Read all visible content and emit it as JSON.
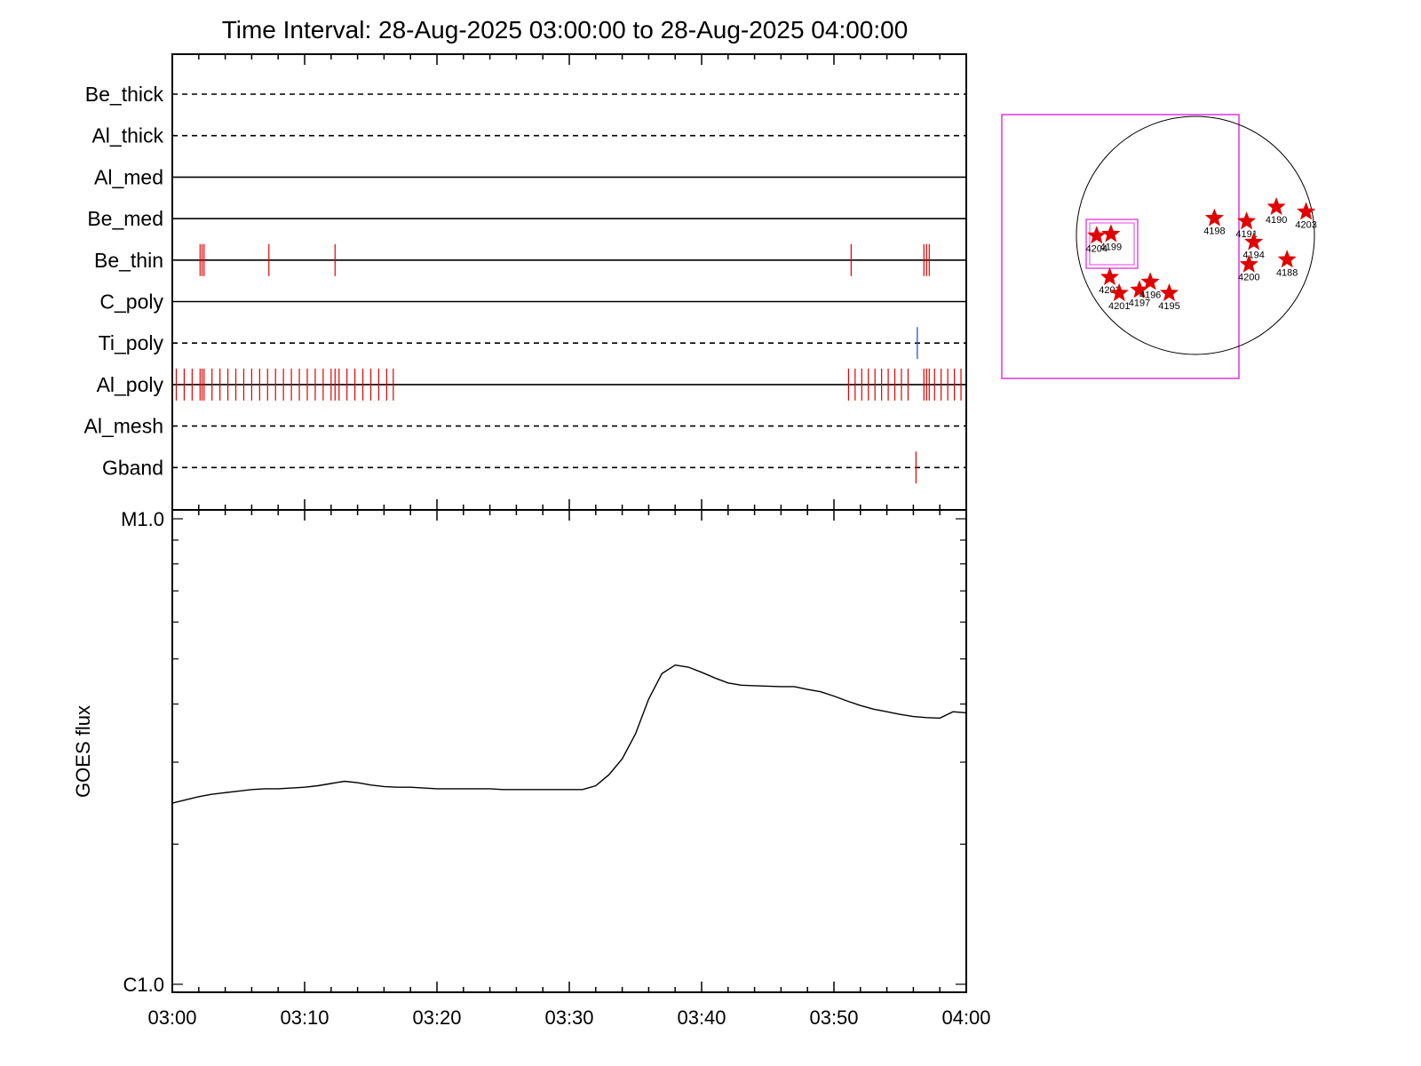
{
  "chart_data": [
    {
      "type": "line",
      "title": "Time Interval: 28-Aug-2025 03:00:00 to 28-Aug-2025 04:00:00",
      "description_note": "",
      "x_range": [
        "03:00",
        "04:00"
      ],
      "filters": [
        {
          "name": "Be_thick",
          "style": "dashed",
          "obs": []
        },
        {
          "name": "Al_thick",
          "style": "dashed",
          "obs": []
        },
        {
          "name": "Al_med",
          "style": "solid",
          "obs": []
        },
        {
          "name": "Be_med",
          "style": "solid",
          "obs": []
        },
        {
          "name": "Be_thin",
          "style": "solid",
          "obs": [
            {
              "t": 2.1,
              "c": "#e00000"
            },
            {
              "t": 2.25,
              "c": "#e00000"
            },
            {
              "t": 2.4,
              "c": "#e00000"
            },
            {
              "t": 7.3,
              "c": "#e00000"
            },
            {
              "t": 12.3,
              "c": "#e00000"
            },
            {
              "t": 51.3,
              "c": "#e00000"
            },
            {
              "t": 56.8,
              "c": "#e00000"
            },
            {
              "t": 57.0,
              "c": "#e00000"
            },
            {
              "t": 57.2,
              "c": "#e00000"
            }
          ]
        },
        {
          "name": "C_poly",
          "style": "solid",
          "obs": []
        },
        {
          "name": "Ti_poly",
          "style": "dashed",
          "obs": [
            {
              "t": 56.3,
              "c": "#2040c0"
            }
          ]
        },
        {
          "name": "Al_poly",
          "style": "solid",
          "obs": [
            {
              "t": 0.3,
              "c": "#e00000"
            },
            {
              "t": 0.9,
              "c": "#e00000"
            },
            {
              "t": 1.5,
              "c": "#e00000"
            },
            {
              "t": 2.1,
              "c": "#e00000"
            },
            {
              "t": 2.25,
              "c": "#e00000"
            },
            {
              "t": 2.4,
              "c": "#e00000"
            },
            {
              "t": 3.0,
              "c": "#e00000"
            },
            {
              "t": 3.6,
              "c": "#e00000"
            },
            {
              "t": 4.2,
              "c": "#e00000"
            },
            {
              "t": 4.8,
              "c": "#e00000"
            },
            {
              "t": 5.4,
              "c": "#e00000"
            },
            {
              "t": 6.0,
              "c": "#e00000"
            },
            {
              "t": 6.6,
              "c": "#e00000"
            },
            {
              "t": 7.2,
              "c": "#e00000"
            },
            {
              "t": 7.8,
              "c": "#e00000"
            },
            {
              "t": 8.4,
              "c": "#e00000"
            },
            {
              "t": 9.0,
              "c": "#e00000"
            },
            {
              "t": 9.6,
              "c": "#e00000"
            },
            {
              "t": 10.2,
              "c": "#e00000"
            },
            {
              "t": 10.8,
              "c": "#e00000"
            },
            {
              "t": 11.4,
              "c": "#e00000"
            },
            {
              "t": 12.0,
              "c": "#e00000"
            },
            {
              "t": 12.3,
              "c": "#e00000"
            },
            {
              "t": 12.6,
              "c": "#e00000"
            },
            {
              "t": 13.2,
              "c": "#e00000"
            },
            {
              "t": 13.8,
              "c": "#e00000"
            },
            {
              "t": 14.4,
              "c": "#e00000"
            },
            {
              "t": 15.0,
              "c": "#e00000"
            },
            {
              "t": 15.6,
              "c": "#e00000"
            },
            {
              "t": 16.2,
              "c": "#e00000"
            },
            {
              "t": 16.7,
              "c": "#e00000"
            },
            {
              "t": 51.1,
              "c": "#e00000"
            },
            {
              "t": 51.6,
              "c": "#e00000"
            },
            {
              "t": 52.1,
              "c": "#e00000"
            },
            {
              "t": 52.6,
              "c": "#e00000"
            },
            {
              "t": 53.1,
              "c": "#e00000"
            },
            {
              "t": 53.6,
              "c": "#e00000"
            },
            {
              "t": 54.1,
              "c": "#e00000"
            },
            {
              "t": 54.6,
              "c": "#e00000"
            },
            {
              "t": 55.1,
              "c": "#e00000"
            },
            {
              "t": 55.6,
              "c": "#e00000"
            },
            {
              "t": 56.8,
              "c": "#e00000"
            },
            {
              "t": 57.0,
              "c": "#e00000"
            },
            {
              "t": 57.2,
              "c": "#e00000"
            },
            {
              "t": 57.6,
              "c": "#e00000"
            },
            {
              "t": 58.1,
              "c": "#e00000"
            },
            {
              "t": 58.6,
              "c": "#e00000"
            },
            {
              "t": 59.1,
              "c": "#e00000"
            },
            {
              "t": 59.6,
              "c": "#e00000"
            }
          ]
        },
        {
          "name": "Al_mesh",
          "style": "dashed",
          "obs": []
        },
        {
          "name": "Gband",
          "style": "dashed",
          "obs": [
            {
              "t": 56.2,
              "c": "#e00000"
            }
          ]
        }
      ]
    },
    {
      "type": "line",
      "ylabel": "GOES flux",
      "xlabel": "",
      "y_scale": "log",
      "ylim": [
        1e-06,
        1e-05
      ],
      "yticks": [
        {
          "label": "M1.0",
          "value": 1e-05
        },
        {
          "label": "C1.0",
          "value": 1e-06
        }
      ],
      "x_range_minutes": [
        0,
        60
      ],
      "xtick_labels": [
        "03:00",
        "03:10",
        "03:20",
        "03:30",
        "03:40",
        "03:50",
        "04:00"
      ],
      "series": [
        {
          "color": "#000000",
          "x": [
            0,
            1,
            2,
            3,
            4,
            5,
            6,
            7,
            8,
            9,
            10,
            11,
            12,
            13,
            14,
            15,
            16,
            17,
            18,
            19,
            20,
            21,
            22,
            23,
            24,
            25,
            26,
            27,
            28,
            29,
            30,
            31,
            32,
            33,
            34,
            35,
            36,
            37,
            38,
            39,
            40,
            41,
            42,
            43,
            44,
            45,
            46,
            47,
            48,
            49,
            50,
            51,
            52,
            53,
            54,
            55,
            56,
            57,
            58,
            59,
            60
          ],
          "y": [
            2.45e-06,
            2.49e-06,
            2.53e-06,
            2.56e-06,
            2.58e-06,
            2.6e-06,
            2.62e-06,
            2.63e-06,
            2.63e-06,
            2.64e-06,
            2.65e-06,
            2.67e-06,
            2.7e-06,
            2.73e-06,
            2.71e-06,
            2.68e-06,
            2.66e-06,
            2.65e-06,
            2.65e-06,
            2.64e-06,
            2.63e-06,
            2.63e-06,
            2.63e-06,
            2.63e-06,
            2.63e-06,
            2.62e-06,
            2.62e-06,
            2.62e-06,
            2.62e-06,
            2.62e-06,
            2.62e-06,
            2.62e-06,
            2.67e-06,
            2.82e-06,
            3.05e-06,
            3.45e-06,
            4.1e-06,
            4.65e-06,
            4.85e-06,
            4.8e-06,
            4.68e-06,
            4.55e-06,
            4.44e-06,
            4.39e-06,
            4.38e-06,
            4.37e-06,
            4.36e-06,
            4.36e-06,
            4.3e-06,
            4.25e-06,
            4.16e-06,
            4.06e-06,
            3.97e-06,
            3.9e-06,
            3.85e-06,
            3.8e-06,
            3.76e-06,
            3.74e-06,
            3.73e-06,
            3.85e-06,
            3.83e-06
          ]
        }
      ]
    },
    {
      "type": "scatter",
      "description": "",
      "frame_color": "#e040e0",
      "marker_color": "#e00000",
      "regions": [
        {
          "label": "4190",
          "x": 0.68,
          "y": 0.38
        },
        {
          "label": "4203",
          "x": 0.93,
          "y": 0.41
        },
        {
          "label": "4191",
          "x": 0.43,
          "y": 0.47
        },
        {
          "label": "4198",
          "x": 0.16,
          "y": 0.45
        },
        {
          "label": "4194",
          "x": 0.49,
          "y": 0.6
        },
        {
          "label": "4188",
          "x": 0.77,
          "y": 0.71
        },
        {
          "label": "4200",
          "x": 0.45,
          "y": 0.74
        },
        {
          "label": "4204",
          "x": -0.83,
          "y": 0.56
        },
        {
          "label": "4199",
          "x": -0.71,
          "y": 0.55
        },
        {
          "label": "4202",
          "x": -0.72,
          "y": 0.82
        },
        {
          "label": "4201",
          "x": -0.64,
          "y": 0.92
        },
        {
          "label": "4197",
          "x": -0.47,
          "y": 0.9
        },
        {
          "label": "4196",
          "x": -0.38,
          "y": 0.85
        },
        {
          "label": "4195",
          "x": -0.22,
          "y": 0.92
        }
      ]
    }
  ]
}
